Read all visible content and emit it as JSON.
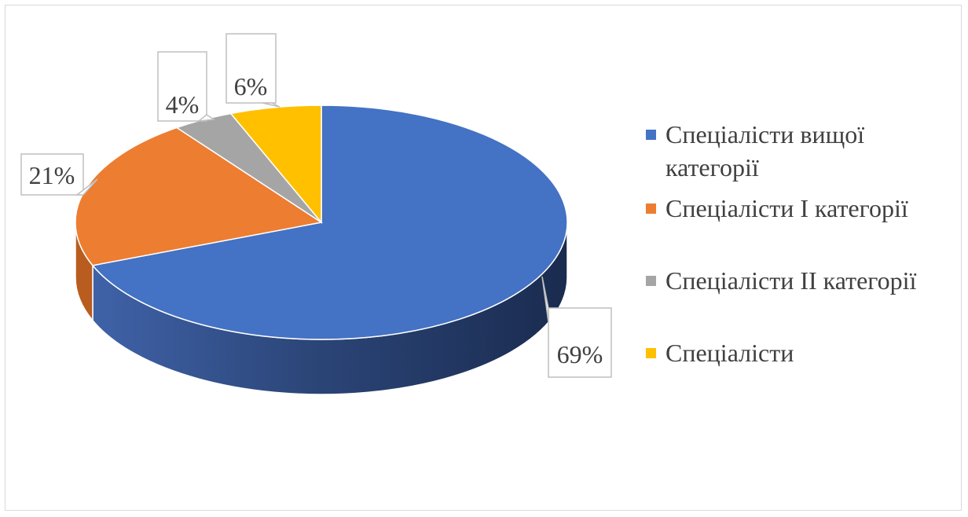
{
  "chart_data": {
    "type": "pie",
    "title": "",
    "categories": [
      "Спеціалісти вищої категорії",
      "Спеціалісти І категорії",
      "Спеціалісти ІІ категорії",
      "Спеціалісти"
    ],
    "values": [
      69,
      21,
      4,
      6
    ],
    "data_labels": [
      "69%",
      "21%",
      "4%",
      "6%"
    ],
    "colors": [
      "#4472C4",
      "#ED7D31",
      "#A5A5A5",
      "#FFC000"
    ],
    "style": "3d",
    "legend_position": "right"
  }
}
